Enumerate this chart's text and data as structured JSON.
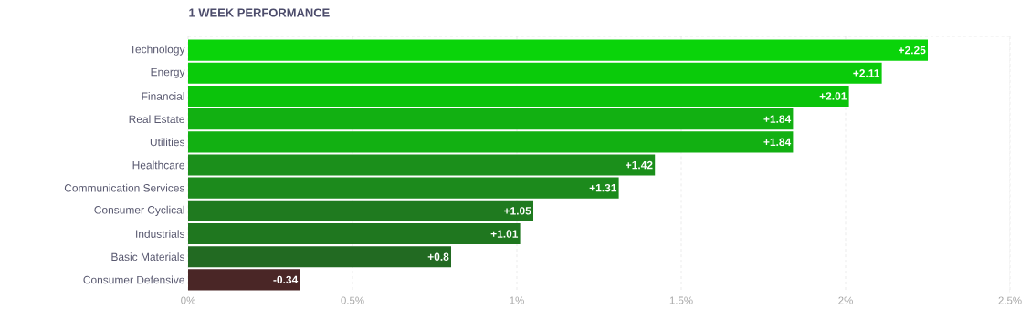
{
  "chart_data": {
    "type": "bar",
    "orientation": "horizontal",
    "title": "1 WEEK PERFORMANCE",
    "categories": [
      "Technology",
      "Energy",
      "Financial",
      "Real Estate",
      "Utilities",
      "Healthcare",
      "Communication Services",
      "Consumer Cyclical",
      "Industrials",
      "Basic Materials",
      "Consumer Defensive"
    ],
    "values": [
      2.25,
      2.11,
      2.01,
      1.84,
      1.84,
      1.42,
      1.31,
      1.05,
      1.01,
      0.8,
      -0.34
    ],
    "base": [
      0,
      0,
      0,
      0,
      0,
      0,
      0,
      0,
      0,
      0,
      0.34
    ],
    "value_labels": [
      "+2.25",
      "+2.11",
      "+2.01",
      "+1.84",
      "+1.84",
      "+1.42",
      "+1.31",
      "+1.05",
      "+1.01",
      "+0.8",
      "-0.34"
    ],
    "colors": [
      "#0ad40a",
      "#0acb0a",
      "#0bc30b",
      "#12b012",
      "#12b012",
      "#1b8f1b",
      "#1c8a1c",
      "#1f7a1f",
      "#1f771f",
      "#226a22",
      "#4a2626"
    ],
    "xlim": [
      0,
      2.5
    ],
    "xticks": [
      {
        "value": 0,
        "label": "0%"
      },
      {
        "value": 0.5,
        "label": "0.5%"
      },
      {
        "value": 1,
        "label": "1%"
      },
      {
        "value": 1.5,
        "label": "1.5%"
      },
      {
        "value": 2,
        "label": "2%"
      },
      {
        "value": 2.5,
        "label": "2.5%"
      }
    ],
    "grid": "x"
  }
}
